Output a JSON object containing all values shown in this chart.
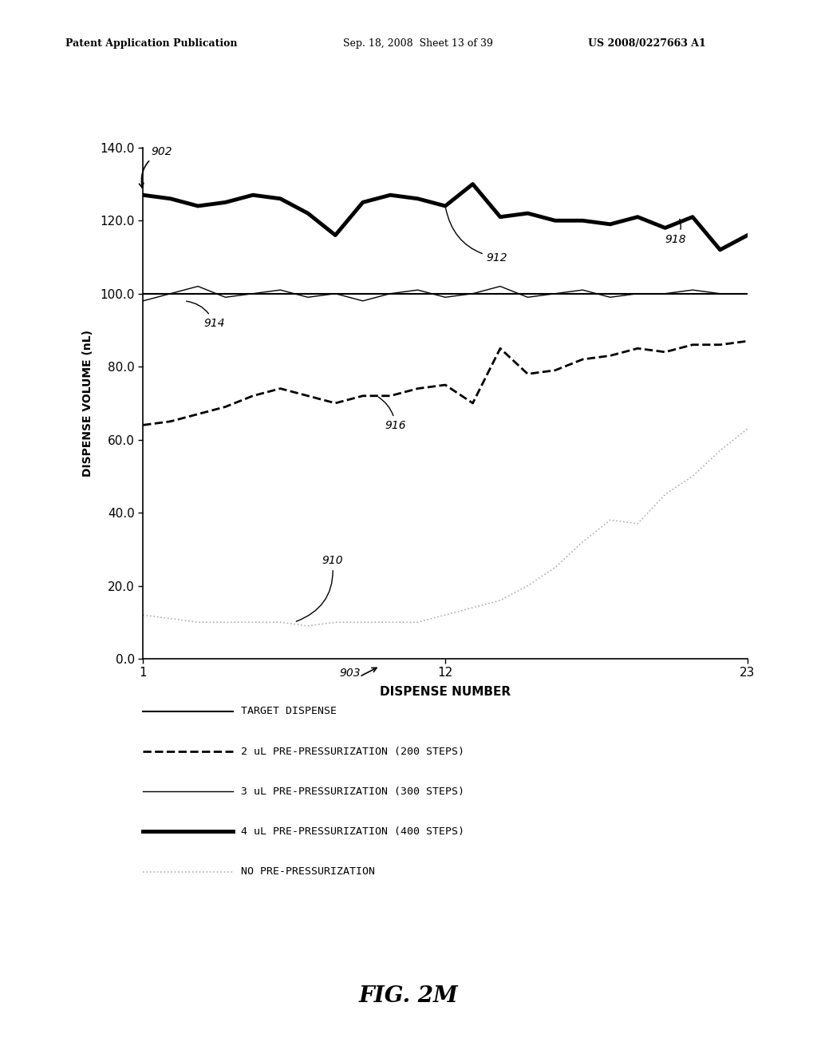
{
  "header_left": "Patent Application Publication",
  "header_mid": "Sep. 18, 2008  Sheet 13 of 39",
  "header_right": "US 2008/0227663 A1",
  "ylabel": "DISPENSE VOLUME (nL)",
  "xlabel": "DISPENSE NUMBER",
  "fig_label": "FIG. 2M",
  "xlim": [
    1,
    23
  ],
  "ylim": [
    0.0,
    140.0
  ],
  "yticks": [
    0.0,
    20.0,
    40.0,
    60.0,
    80.0,
    100.0,
    120.0,
    140.0
  ],
  "xticks": [
    1,
    12,
    23
  ],
  "x": [
    1,
    2,
    3,
    4,
    5,
    6,
    7,
    8,
    9,
    10,
    11,
    12,
    13,
    14,
    15,
    16,
    17,
    18,
    19,
    20,
    21,
    22,
    23
  ],
  "target_dispense": [
    100,
    100,
    100,
    100,
    100,
    100,
    100,
    100,
    100,
    100,
    100,
    100,
    100,
    100,
    100,
    100,
    100,
    100,
    100,
    100,
    100,
    100,
    100
  ],
  "line_300steps": [
    98,
    100,
    102,
    99,
    100,
    101,
    99,
    100,
    98,
    100,
    101,
    99,
    100,
    102,
    99,
    100,
    101,
    99,
    100,
    100,
    101,
    100,
    100
  ],
  "line_400steps": [
    127,
    126,
    124,
    125,
    127,
    126,
    122,
    116,
    125,
    127,
    126,
    124,
    130,
    121,
    122,
    120,
    120,
    119,
    121,
    118,
    121,
    112,
    116
  ],
  "line_no_pre": [
    12,
    11,
    10,
    10,
    10,
    10,
    9,
    10,
    10,
    10,
    10,
    12,
    14,
    16,
    20,
    25,
    32,
    38,
    37,
    45,
    50,
    57,
    63
  ],
  "line_2ul": [
    64,
    65,
    67,
    69,
    72,
    74,
    72,
    70,
    72,
    72,
    74,
    75,
    70,
    85,
    78,
    79,
    82,
    83,
    85,
    84,
    86,
    86,
    87
  ],
  "background_color": "#ffffff",
  "text_color": "#000000",
  "line_no_pre_color": "#b0b0b0",
  "legend_items": [
    {
      "label": "TARGET DISPENSE",
      "linestyle": "-",
      "linewidth": 1.5,
      "color": "#000000"
    },
    {
      "label": "2 uL PRE-PRESSURIZATION (200 STEPS)",
      "linestyle": "--",
      "linewidth": 2.0,
      "color": "#000000"
    },
    {
      "label": "3 uL PRE-PRESSURIZATION (300 STEPS)",
      "linestyle": "-",
      "linewidth": 1.0,
      "color": "#000000"
    },
    {
      "label": "4 uL PRE-PRESSURIZATION (400 STEPS)",
      "linestyle": "-",
      "linewidth": 3.5,
      "color": "#000000"
    },
    {
      "label": "NO PRE-PRESSURIZATION",
      "linestyle": ":",
      "linewidth": 1.2,
      "color": "#b0b0b0"
    }
  ]
}
